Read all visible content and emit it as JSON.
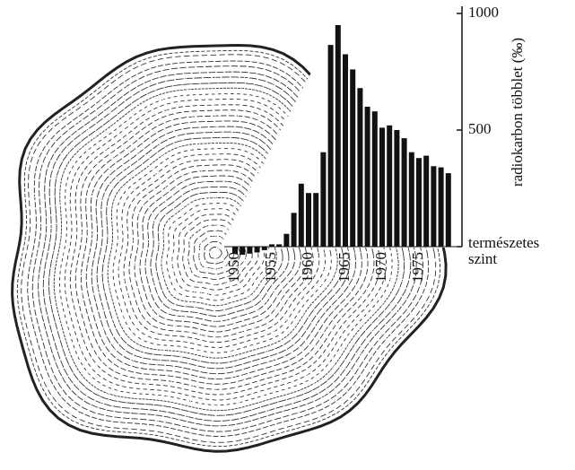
{
  "chart_data": {
    "type": "bar",
    "ylabel": "radiokarbon többlet (‰)",
    "categories": [
      "1950",
      "1951",
      "1952",
      "1953",
      "1954",
      "1955",
      "1956",
      "1957",
      "1958",
      "1959",
      "1960",
      "1961",
      "1962",
      "1963",
      "1964",
      "1965",
      "1966",
      "1967",
      "1968",
      "1969",
      "1970",
      "1971",
      "1972",
      "1973",
      "1974",
      "1975",
      "1976",
      "1977",
      "1978",
      "1979"
    ],
    "values": [
      -30,
      -35,
      -30,
      -25,
      -15,
      10,
      10,
      55,
      145,
      270,
      230,
      230,
      405,
      865,
      950,
      825,
      760,
      680,
      600,
      580,
      510,
      520,
      500,
      465,
      405,
      380,
      390,
      345,
      340,
      315
    ],
    "xticks": [
      "1950",
      "1955",
      "1960",
      "1965",
      "1970",
      "1975"
    ],
    "xtick_index": [
      0,
      5,
      10,
      15,
      20,
      25
    ],
    "color": "#111111",
    "ylim": [
      0,
      1000
    ],
    "yticks": [
      {
        "value": 0,
        "label": "természetes szint"
      },
      500,
      1000
    ]
  }
}
